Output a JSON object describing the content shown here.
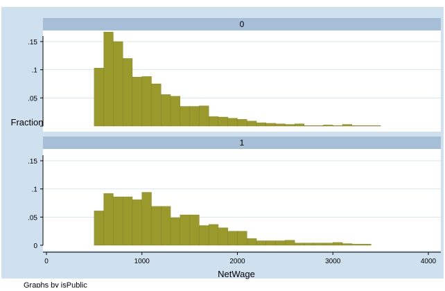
{
  "chart_data": {
    "type": "bar",
    "ylabel": "Fraction",
    "xlabel": "NetWage",
    "note": "Graphs by isPublic",
    "xlim": [
      0,
      4000
    ],
    "ylim": [
      0,
      0.18
    ],
    "x_ticks": [
      0,
      1000,
      2000,
      3000,
      4000
    ],
    "y_ticks": [
      0,
      0.05,
      0.1,
      0.15
    ],
    "y_tick_labels": [
      "0",
      ".05",
      ".1",
      ".15"
    ],
    "bin_width": 100,
    "bar_color": "#9a9a2c",
    "panels": [
      {
        "name": "0",
        "bin_starts": [
          500,
          600,
          700,
          800,
          900,
          1000,
          1100,
          1200,
          1300,
          1400,
          1500,
          1600,
          1700,
          1800,
          1900,
          2000,
          2100,
          2200,
          2300,
          2400,
          2500,
          2600,
          2700,
          2800,
          2900,
          3000,
          3100,
          3200,
          3300,
          3400
        ],
        "values": [
          0.103,
          0.167,
          0.15,
          0.12,
          0.087,
          0.088,
          0.075,
          0.056,
          0.053,
          0.035,
          0.035,
          0.036,
          0.017,
          0.016,
          0.014,
          0.012,
          0.009,
          0.006,
          0.005,
          0.004,
          0.003,
          0.004,
          0.001,
          0.001,
          0.002,
          0.001,
          0.003,
          0.001,
          0.001,
          0.001
        ]
      },
      {
        "name": "1",
        "bin_starts": [
          500,
          600,
          700,
          800,
          900,
          1000,
          1100,
          1200,
          1300,
          1400,
          1500,
          1600,
          1700,
          1800,
          1900,
          2000,
          2100,
          2200,
          2300,
          2400,
          2500,
          2600,
          2700,
          2800,
          2900,
          3000,
          3100,
          3200,
          3300
        ],
        "values": [
          0.061,
          0.092,
          0.086,
          0.086,
          0.081,
          0.094,
          0.069,
          0.069,
          0.049,
          0.054,
          0.054,
          0.035,
          0.037,
          0.031,
          0.025,
          0.025,
          0.012,
          0.008,
          0.008,
          0.008,
          0.009,
          0.004,
          0.004,
          0.004,
          0.004,
          0.005,
          0.003,
          0.002,
          0.002
        ]
      }
    ]
  }
}
